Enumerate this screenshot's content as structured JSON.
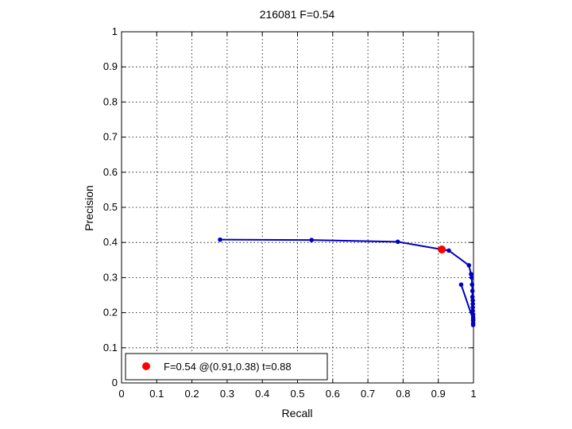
{
  "chart_data": {
    "type": "line",
    "title": "216081 F=0.54",
    "xlabel": "Recall",
    "ylabel": "Precision",
    "xlim": [
      0,
      1
    ],
    "ylim": [
      0,
      1
    ],
    "grid": true,
    "xticks": [
      0,
      0.1,
      0.2,
      0.3,
      0.4,
      0.5,
      0.6,
      0.7,
      0.8,
      0.9,
      1
    ],
    "yticks": [
      0,
      0.1,
      0.2,
      0.3,
      0.4,
      0.5,
      0.6,
      0.7,
      0.8,
      0.9,
      1
    ],
    "xtick_labels": [
      "0",
      "0.1",
      "0.2",
      "0.3",
      "0.4",
      "0.5",
      "0.6",
      "0.7",
      "0.8",
      "0.9",
      "1"
    ],
    "ytick_labels": [
      "0",
      "0.1",
      "0.2",
      "0.3",
      "0.4",
      "0.5",
      "0.6",
      "0.7",
      "0.8",
      "0.9",
      "1"
    ],
    "legend_placement": "bottom-left",
    "series": [
      {
        "color": "#0000c0",
        "points": [
          [
            0.28,
            0.408
          ],
          [
            0.54,
            0.407
          ],
          [
            0.785,
            0.402
          ],
          [
            0.91,
            0.38
          ],
          [
            0.93,
            0.377
          ],
          [
            0.987,
            0.335
          ],
          [
            0.993,
            0.31
          ],
          [
            0.995,
            0.3
          ],
          [
            0.996,
            0.28
          ],
          [
            0.997,
            0.262
          ],
          [
            0.997,
            0.245
          ],
          [
            0.998,
            0.235
          ],
          [
            0.998,
            0.225
          ],
          [
            0.998,
            0.215
          ],
          [
            0.998,
            0.205
          ],
          [
            0.999,
            0.195
          ],
          [
            0.999,
            0.186
          ],
          [
            0.999,
            0.178
          ],
          [
            0.999,
            0.17
          ],
          [
            0.999,
            0.165
          ],
          [
            0.965,
            0.28
          ],
          [
            0.999,
            0.18
          ]
        ],
        "path": [
          [
            0.28,
            0.408
          ],
          [
            0.54,
            0.407
          ],
          [
            0.785,
            0.402
          ],
          [
            0.91,
            0.38
          ],
          [
            0.93,
            0.377
          ],
          [
            0.987,
            0.335
          ],
          [
            0.993,
            0.31
          ],
          [
            0.995,
            0.3
          ],
          [
            0.996,
            0.28
          ],
          [
            0.997,
            0.262
          ],
          [
            0.997,
            0.245
          ],
          [
            0.998,
            0.235
          ],
          [
            0.998,
            0.225
          ],
          [
            0.998,
            0.215
          ],
          [
            0.998,
            0.205
          ],
          [
            0.999,
            0.195
          ],
          [
            0.999,
            0.186
          ],
          [
            0.999,
            0.178
          ],
          [
            0.999,
            0.17
          ],
          [
            0.999,
            0.165
          ]
        ],
        "branch": [
          [
            0.965,
            0.28
          ],
          [
            0.999,
            0.18
          ]
        ]
      }
    ],
    "best_point": {
      "recall": 0.91,
      "precision": 0.38,
      "color": "#ff0000",
      "legend_label": "F=0.54 @(0.91,0.38) t=0.88"
    }
  }
}
